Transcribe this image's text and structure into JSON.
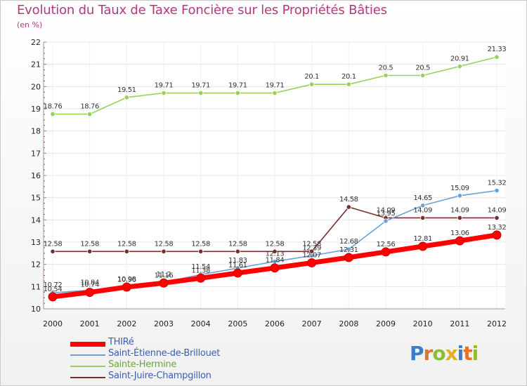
{
  "title": "Evolution du Taux de Taxe Foncière sur les Propriétés Bâties",
  "unit_label": "(en %)",
  "logo": {
    "text": "Proxiti",
    "letter_colors": [
      "#3a7fcf",
      "#e7722c",
      "#8cbf2f",
      "#e0b020",
      "#3a7fcf",
      "#e7722c",
      "#8cbf2f"
    ]
  },
  "chart_data": {
    "type": "line",
    "title": "Evolution du Taux de Taxe Foncière sur les Propriétés Bâties",
    "ylabel": "(en %)",
    "xlabel": "",
    "x": [
      "2000",
      "2001",
      "2002",
      "2003",
      "2004",
      "2005",
      "2006",
      "2007",
      "2008",
      "2009",
      "2010",
      "2011",
      "2012"
    ],
    "ylim": [
      10,
      22
    ],
    "yticks": [
      "10",
      "11",
      "12",
      "13",
      "14",
      "15",
      "16",
      "17",
      "18",
      "19",
      "20",
      "21",
      "22"
    ],
    "grid": true,
    "legend_position": "bottom-left",
    "series": [
      {
        "name": "THIRé",
        "color": "#ff0000",
        "values": [
          10.54,
          10.74,
          10.98,
          11.16,
          11.38,
          11.61,
          11.84,
          12.07,
          12.31,
          12.56,
          12.81,
          13.06,
          13.32
        ],
        "labels": [
          "10.54",
          "10.74",
          "10.98",
          "11.16",
          "11.38",
          "11.61",
          "11.84",
          "12.07",
          "12.31",
          "12.56",
          "12.81",
          "13.06",
          "13.32"
        ]
      },
      {
        "name": "Saint-Étienne-de-Brillouet",
        "color": "#6aa2d6",
        "values": [
          10.72,
          10.84,
          10.96,
          11.2,
          11.54,
          11.83,
          12.13,
          12.39,
          12.68,
          13.95,
          14.65,
          15.09,
          15.32
        ],
        "labels": [
          "10.72",
          "10.84",
          "10.96",
          "11.2",
          "11.54",
          "11.83",
          "12.13",
          "12.39",
          "12.68",
          "13.95",
          "14.65",
          "15.09",
          "15.32"
        ]
      },
      {
        "name": "Sainte-Hermine",
        "color": "#98d05a",
        "values": [
          18.76,
          18.76,
          19.51,
          19.71,
          19.71,
          19.71,
          19.71,
          20.1,
          20.1,
          20.5,
          20.5,
          20.91,
          21.33
        ],
        "labels": [
          "18.76",
          "18.76",
          "19.51",
          "19.71",
          "19.71",
          "19.71",
          "19.71",
          "20.1",
          "20.1",
          "20.5",
          "20.5",
          "20.91",
          "21.33"
        ]
      },
      {
        "name": "Saint-Juire-Champgillon",
        "color": "#7a2b2b",
        "values": [
          12.58,
          12.58,
          12.58,
          12.58,
          12.58,
          12.58,
          12.58,
          12.58,
          14.58,
          14.09,
          14.09,
          14.09,
          14.09
        ],
        "labels": [
          "12.58",
          "12.58",
          "12.58",
          "12.58",
          "12.58",
          "12.58",
          "12.58",
          "12.58",
          "14.58",
          "14.09",
          "14.09",
          "14.09",
          "14.09"
        ]
      }
    ]
  }
}
